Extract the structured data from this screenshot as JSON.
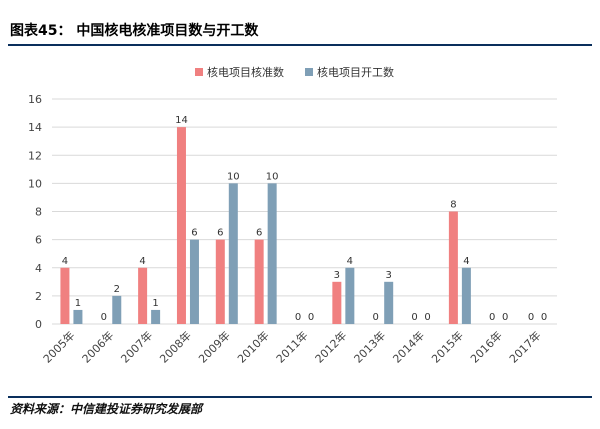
{
  "header": {
    "title": "图表45：  中国核电核准项目数与开工数"
  },
  "footer": {
    "source": "资料来源：中信建投证券研究发展部"
  },
  "colors": {
    "approved": "#f08080",
    "started": "#7f9fb6",
    "rule": "#0a2f5c",
    "grid": "#d9d9d9"
  },
  "chart_data": {
    "type": "bar",
    "title": "",
    "xlabel": "",
    "ylabel": "",
    "ylim": [
      0,
      16
    ],
    "yticks": [
      0,
      2,
      4,
      6,
      8,
      10,
      12,
      14,
      16
    ],
    "grid": true,
    "legend_position": "top-right",
    "categories": [
      "2005年",
      "2006年",
      "2007年",
      "2008年",
      "2009年",
      "2010年",
      "2011年",
      "2012年",
      "2013年",
      "2014年",
      "2015年",
      "2016年",
      "2017年"
    ],
    "series": [
      {
        "name": "核电项目核准数",
        "values": [
          4,
          0,
          4,
          14,
          6,
          6,
          0,
          3,
          0,
          0,
          8,
          0,
          0
        ]
      },
      {
        "name": "核电项目开工数",
        "values": [
          1,
          2,
          1,
          6,
          10,
          10,
          0,
          4,
          3,
          0,
          4,
          0,
          0
        ]
      }
    ]
  }
}
